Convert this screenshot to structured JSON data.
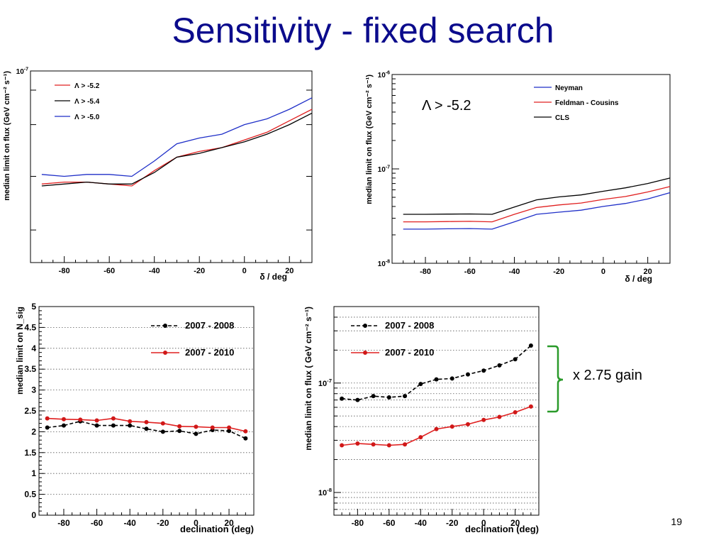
{
  "slide": {
    "title": "Sensitivity  - fixed search",
    "page_number": "19",
    "gain_label": "x 2.75 gain",
    "brace_color": "#2a9a2a"
  },
  "chart_data": [
    {
      "id": "chart-tl",
      "type": "line",
      "ylabel": "median limit on flux (GeV cm⁻² s⁻¹)",
      "xlabel": "δ / deg",
      "xlim": [
        -95,
        30
      ],
      "ylim": [
        0,
        1
      ],
      "y_scale": "linear",
      "x_ticks": [
        -80,
        -60,
        -40,
        -20,
        0,
        20
      ],
      "y_tick_labels": [
        {
          "value": 1,
          "label": "10⁻⁷"
        }
      ],
      "legend_position": "top-left",
      "x": [
        -90,
        -80,
        -70,
        -60,
        -50,
        -40,
        -30,
        -20,
        -10,
        0,
        10,
        20,
        30
      ],
      "series": [
        {
          "name": "Λ > -5.2",
          "color": "#e02020",
          "values": [
            0.41,
            0.42,
            0.42,
            0.41,
            0.4,
            0.48,
            0.55,
            0.58,
            0.6,
            0.64,
            0.68,
            0.74,
            0.8
          ]
        },
        {
          "name": "Λ > -5.4",
          "color": "#000000",
          "values": [
            0.4,
            0.41,
            0.42,
            0.41,
            0.41,
            0.47,
            0.55,
            0.57,
            0.6,
            0.63,
            0.67,
            0.72,
            0.78
          ]
        },
        {
          "name": "Λ > -5.0",
          "color": "#1f2fc8",
          "values": [
            0.46,
            0.45,
            0.46,
            0.46,
            0.45,
            0.53,
            0.62,
            0.65,
            0.67,
            0.72,
            0.75,
            0.8,
            0.86
          ]
        }
      ]
    },
    {
      "id": "chart-tr",
      "type": "line",
      "ylabel": "median limit on flux (GeV cm⁻² s⁻¹)",
      "xlabel": "δ / deg",
      "xlim": [
        -95,
        30
      ],
      "ylim": [
        1e-08,
        1e-06
      ],
      "y_scale": "log",
      "x_ticks": [
        -80,
        -60,
        -40,
        -20,
        0,
        20
      ],
      "y_tick_labels": [
        {
          "value": 1e-08,
          "label": "10⁻⁸"
        },
        {
          "value": 1e-07,
          "label": "10⁻⁷"
        },
        {
          "value": 1e-06,
          "label": "10⁻⁶"
        }
      ],
      "annotation": "Λ > -5.2",
      "legend_position": "top-right",
      "x": [
        -90,
        -80,
        -70,
        -60,
        -50,
        -40,
        -30,
        -20,
        -10,
        0,
        10,
        20,
        30
      ],
      "series": [
        {
          "name": "Neyman",
          "color": "#1f2fc8",
          "values": [
            2.3e-08,
            2.3e-08,
            2.32e-08,
            2.33e-08,
            2.3e-08,
            2.75e-08,
            3.3e-08,
            3.48e-08,
            3.65e-08,
            4e-08,
            4.3e-08,
            4.8e-08,
            5.6e-08
          ]
        },
        {
          "name": "Feldman - Cousins",
          "color": "#e02020",
          "values": [
            2.75e-08,
            2.75e-08,
            2.77e-08,
            2.78e-08,
            2.75e-08,
            3.3e-08,
            3.9e-08,
            4.15e-08,
            4.35e-08,
            4.75e-08,
            5.1e-08,
            5.7e-08,
            6.5e-08
          ]
        },
        {
          "name": "CLS",
          "color": "#000000",
          "values": [
            3.3e-08,
            3.3e-08,
            3.32e-08,
            3.33e-08,
            3.3e-08,
            3.95e-08,
            4.7e-08,
            5.05e-08,
            5.3e-08,
            5.8e-08,
            6.3e-08,
            7e-08,
            8e-08
          ]
        }
      ]
    },
    {
      "id": "chart-bl",
      "type": "line",
      "ylabel": "median limit on N_sig",
      "xlabel": "declination (deg)",
      "xlim": [
        -95,
        35
      ],
      "ylim": [
        0,
        5
      ],
      "y_scale": "linear",
      "x_ticks": [
        -80,
        -60,
        -40,
        -20,
        0,
        20
      ],
      "y_ticks": [
        0,
        0.5,
        1,
        1.5,
        2,
        2.5,
        3,
        3.5,
        4,
        4.5,
        5
      ],
      "y_tick_labels": [
        {
          "value": 0,
          "label": "0"
        },
        {
          "value": 0.5,
          "label": "0.5"
        },
        {
          "value": 1,
          "label": "1"
        },
        {
          "value": 1.5,
          "label": "1.5"
        },
        {
          "value": 2,
          "label": "2"
        },
        {
          "value": 2.5,
          "label": "2.5"
        },
        {
          "value": 3,
          "label": "3"
        },
        {
          "value": 3.5,
          "label": "3.5"
        },
        {
          "value": 4,
          "label": "4"
        },
        {
          "value": 4.5,
          "label": "4.5"
        },
        {
          "value": 5,
          "label": "5"
        }
      ],
      "grid": "horizontal-dotted",
      "legend_position": "top-right",
      "x": [
        -90,
        -80,
        -70,
        -60,
        -50,
        -40,
        -30,
        -20,
        -10,
        0,
        10,
        20,
        30
      ],
      "series": [
        {
          "name": "2007 - 2008",
          "color": "#000000",
          "style": "dashed-markers",
          "values": [
            2.1,
            2.15,
            2.25,
            2.15,
            2.15,
            2.15,
            2.07,
            2.0,
            2.02,
            1.95,
            2.04,
            2.02,
            1.84
          ]
        },
        {
          "name": "2007 - 2010",
          "color": "#e02020",
          "style": "solid-markers",
          "values": [
            2.32,
            2.3,
            2.29,
            2.27,
            2.32,
            2.25,
            2.23,
            2.2,
            2.13,
            2.12,
            2.1,
            2.1,
            2.01
          ]
        }
      ]
    },
    {
      "id": "chart-br",
      "type": "line",
      "ylabel": "median limit on flux ( GeV cm⁻² s⁻¹)",
      "xlabel": "declination (deg)",
      "xlim": [
        -95,
        35
      ],
      "ylim": [
        6.2e-09,
        5e-07
      ],
      "y_scale": "log",
      "x_ticks": [
        -80,
        -60,
        -40,
        -20,
        0,
        20
      ],
      "y_tick_labels": [
        {
          "value": 1e-08,
          "label": "10⁻⁸"
        },
        {
          "value": 1e-07,
          "label": "10⁻⁷"
        }
      ],
      "grid": "horizontal-dotted",
      "legend_position": "top-left",
      "x": [
        -90,
        -80,
        -70,
        -60,
        -50,
        -40,
        -30,
        -20,
        -10,
        0,
        10,
        20,
        30
      ],
      "series": [
        {
          "name": "2007 - 2008",
          "color": "#000000",
          "style": "dashed-markers",
          "values": [
            7.2e-08,
            7e-08,
            7.6e-08,
            7.4e-08,
            7.6e-08,
            9.8e-08,
            1.08e-07,
            1.1e-07,
            1.2e-07,
            1.3e-07,
            1.45e-07,
            1.65e-07,
            2.2e-07
          ]
        },
        {
          "name": "2007 - 2010",
          "color": "#e02020",
          "style": "solid-markers",
          "values": [
            2.7e-08,
            2.8e-08,
            2.75e-08,
            2.7e-08,
            2.75e-08,
            3.2e-08,
            3.8e-08,
            4e-08,
            4.2e-08,
            4.6e-08,
            4.9e-08,
            5.4e-08,
            6.1e-08
          ]
        }
      ]
    }
  ]
}
